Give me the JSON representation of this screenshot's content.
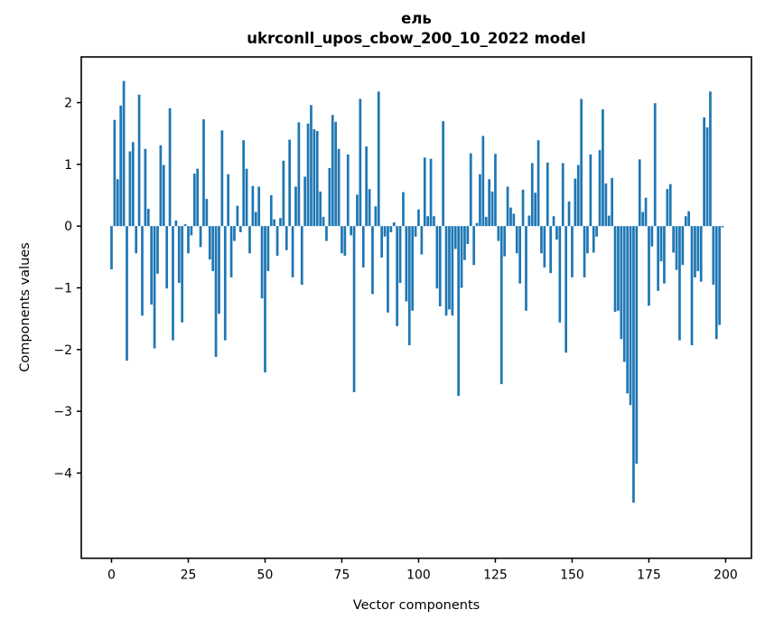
{
  "chart_data": {
    "type": "bar",
    "title_line1": "ель",
    "title_line2": "ukrconll_upos_cbow_200_10_2022 model",
    "xlabel": "Vector components",
    "ylabel": "Components values",
    "n_components": 200,
    "bar_color": "#1f77b4",
    "xticks": [
      0,
      25,
      50,
      75,
      100,
      125,
      150,
      175,
      200
    ],
    "yticks": [
      2,
      1,
      0,
      -1,
      -2,
      -3,
      -4
    ],
    "xlim": [
      -9.85,
      208.4
    ],
    "ylim": [
      -5.38,
      2.74
    ],
    "grid": false,
    "legend": "none",
    "values": [
      -0.7,
      1.72,
      0.76,
      1.95,
      2.35,
      -2.18,
      1.21,
      1.36,
      -0.44,
      2.13,
      -1.45,
      1.25,
      0.28,
      -1.27,
      -1.98,
      -0.77,
      1.31,
      0.99,
      -1.01,
      1.91,
      -1.85,
      0.09,
      -0.92,
      -1.56,
      0.03,
      -0.44,
      -0.15,
      0.85,
      0.93,
      -0.34,
      1.73,
      0.44,
      -0.54,
      -0.73,
      -2.12,
      -1.42,
      1.55,
      -1.85,
      0.84,
      -0.83,
      -0.24,
      0.33,
      -0.1,
      1.39,
      0.93,
      -0.44,
      0.65,
      0.23,
      0.64,
      -1.17,
      -2.37,
      -0.73,
      0.5,
      0.11,
      -0.48,
      0.13,
      1.06,
      -0.39,
      1.4,
      -0.83,
      0.64,
      1.68,
      -0.95,
      0.8,
      1.66,
      1.96,
      1.57,
      1.54,
      0.56,
      0.15,
      -0.24,
      0.94,
      1.8,
      1.69,
      1.25,
      -0.44,
      -0.48,
      1.16,
      -0.15,
      -2.69,
      0.51,
      2.06,
      -0.67,
      1.29,
      0.6,
      -1.1,
      0.32,
      2.18,
      -0.51,
      -0.17,
      -1.4,
      -0.1,
      0.06,
      -1.62,
      -0.92,
      0.55,
      -1.22,
      -1.93,
      -1.37,
      -0.17,
      0.27,
      -0.46,
      1.11,
      0.16,
      1.09,
      0.16,
      -1.01,
      -1.3,
      1.7,
      -1.45,
      -1.35,
      -1.45,
      -0.37,
      -2.75,
      -1.0,
      -0.55,
      -0.29,
      1.18,
      -0.63,
      0.05,
      0.84,
      1.46,
      0.15,
      0.76,
      0.56,
      1.17,
      -0.24,
      -2.56,
      -0.49,
      0.64,
      0.3,
      0.2,
      -0.44,
      -0.93,
      0.59,
      -1.37,
      0.17,
      1.02,
      0.54,
      1.39,
      -0.44,
      -0.67,
      1.03,
      -0.76,
      0.16,
      -0.22,
      -1.56,
      1.02,
      -2.05,
      0.4,
      -0.83,
      0.77,
      0.99,
      2.06,
      -0.83,
      -0.44,
      1.16,
      -0.43,
      -0.17,
      1.23,
      1.89,
      0.69,
      0.17,
      0.78,
      -1.39,
      -1.37,
      -1.83,
      -2.2,
      -2.71,
      -2.9,
      -4.48,
      -3.85,
      1.08,
      0.23,
      0.46,
      -1.29,
      -0.33,
      1.99,
      -1.05,
      -0.57,
      -0.93,
      0.6,
      0.68,
      -0.43,
      -0.71,
      -1.85,
      -0.63,
      0.16,
      0.24,
      -1.93,
      -0.83,
      -0.73,
      -0.9,
      1.76,
      1.6,
      2.18,
      -0.95,
      -1.83,
      -1.6,
      -0.02
    ]
  }
}
